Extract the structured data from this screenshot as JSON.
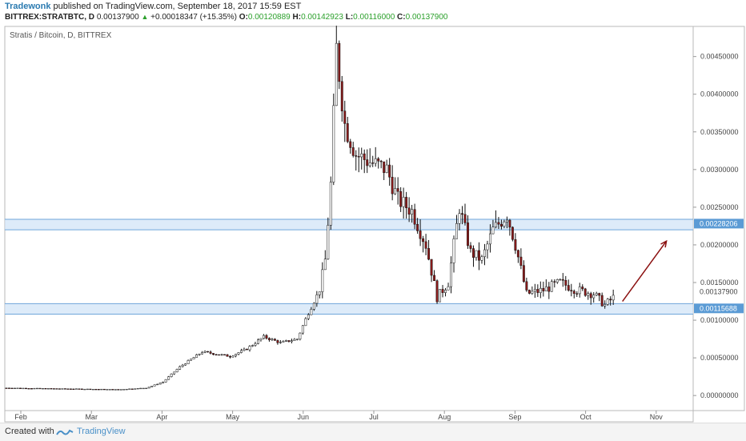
{
  "header": {
    "author": "Tradewonk",
    "published": " published on TradingView.com, September 18, 2017 15:59 EST",
    "symbol": "BITTREX:STRATBTC, D",
    "last": "0.00137900",
    "change_arrow": "▲",
    "change": "+0.00018347 (+15.35%)",
    "o_label": "O:",
    "o_val": "0.00120889",
    "h_label": "H:",
    "h_val": "0.00142923",
    "l_label": "L:",
    "l_val": "0.00116000",
    "c_label": "C:",
    "c_val": "0.00137900"
  },
  "footer": {
    "created": "Created with",
    "brand": "TradingView"
  },
  "colors": {
    "up": "#2ca02c",
    "bar": "#111111",
    "bear_body": "#8b1a1a",
    "zone_fill": "#cfe3f7",
    "zone_line": "#6fa6da",
    "arrow": "#8b1010",
    "label_bg": "#5b9bd5"
  },
  "chart_data": {
    "type": "candlestick",
    "title": "Stratis / Bitcoin, D, BITTREX",
    "x_ticks": [
      "Feb",
      "Mar",
      "Apr",
      "May",
      "Jun",
      "Jul",
      "Aug",
      "Sep",
      "Oct",
      "Nov"
    ],
    "y_ticks": [
      "0.00450000",
      "0.00400000",
      "0.00350000",
      "0.00300000",
      "0.00250000",
      "0.00200000",
      "0.00150000",
      "0.00100000",
      "0.00050000",
      "0.00000000"
    ],
    "ylim": [
      -0.0002,
      0.0049
    ],
    "price_labels": [
      {
        "value": 0.00228206,
        "text": "0.00228206",
        "highlight": true
      },
      {
        "value": 0.001379,
        "text": "0.00137900",
        "highlight": false
      },
      {
        "value": 0.00115688,
        "text": "0.00115688",
        "highlight": true
      }
    ],
    "zones": [
      {
        "low": 0.0022,
        "high": 0.00234
      },
      {
        "low": 0.00108,
        "high": 0.00122
      }
    ],
    "arrow": {
      "from_day": 218,
      "from_price": 0.00125,
      "to_day": 232,
      "to_price": 0.00205
    },
    "series": [
      {
        "day": 0,
        "price": 0.0001
      },
      {
        "day": 40,
        "price": 8e-05
      },
      {
        "day": 50,
        "price": 0.0001
      },
      {
        "day": 56,
        "price": 0.00018
      },
      {
        "day": 62,
        "price": 0.00038
      },
      {
        "day": 70,
        "price": 0.00058
      },
      {
        "day": 80,
        "price": 0.00052
      },
      {
        "day": 86,
        "price": 0.00062
      },
      {
        "day": 92,
        "price": 0.00078
      },
      {
        "day": 98,
        "price": 0.0007
      },
      {
        "day": 104,
        "price": 0.00075
      },
      {
        "day": 108,
        "price": 0.0011
      },
      {
        "day": 112,
        "price": 0.0014
      },
      {
        "day": 114,
        "price": 0.0018
      },
      {
        "day": 116,
        "price": 0.0028
      },
      {
        "day": 118,
        "price": 0.0046
      },
      {
        "day": 121,
        "price": 0.0036
      },
      {
        "day": 125,
        "price": 0.0032
      },
      {
        "day": 130,
        "price": 0.0031
      },
      {
        "day": 136,
        "price": 0.003
      },
      {
        "day": 140,
        "price": 0.0026
      },
      {
        "day": 145,
        "price": 0.00245
      },
      {
        "day": 150,
        "price": 0.002
      },
      {
        "day": 154,
        "price": 0.0013
      },
      {
        "day": 158,
        "price": 0.0015
      },
      {
        "day": 162,
        "price": 0.0025
      },
      {
        "day": 166,
        "price": 0.0019
      },
      {
        "day": 170,
        "price": 0.0018
      },
      {
        "day": 174,
        "price": 0.0022
      },
      {
        "day": 179,
        "price": 0.0024
      },
      {
        "day": 182,
        "price": 0.002
      },
      {
        "day": 186,
        "price": 0.00135
      },
      {
        "day": 192,
        "price": 0.0014
      },
      {
        "day": 198,
        "price": 0.0015
      },
      {
        "day": 204,
        "price": 0.0014
      },
      {
        "day": 210,
        "price": 0.00135
      },
      {
        "day": 214,
        "price": 0.0012
      },
      {
        "day": 217,
        "price": 0.0013
      }
    ]
  }
}
